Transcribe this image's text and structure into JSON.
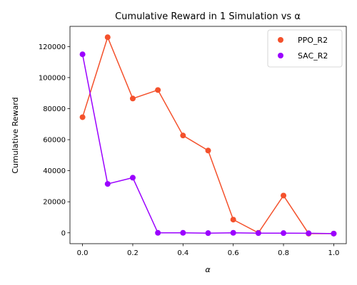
{
  "chart_data": {
    "type": "line",
    "title": "Cumulative Reward in 1 Simulation vs α",
    "xlabel": "α",
    "ylabel": "Cumulative Reward",
    "x": [
      0.0,
      0.1,
      0.2,
      0.3,
      0.4,
      0.5,
      0.6,
      0.7,
      0.8,
      0.9,
      1.0
    ],
    "xlim": [
      -0.05,
      1.05
    ],
    "ylim": [
      -7000,
      133000
    ],
    "x_ticks": [
      "0.0",
      "0.2",
      "0.4",
      "0.6",
      "0.8",
      "1.0"
    ],
    "x_tick_values": [
      0.0,
      0.2,
      0.4,
      0.6,
      0.8,
      1.0
    ],
    "y_ticks": [
      "0",
      "20000",
      "40000",
      "60000",
      "80000",
      "100000",
      "120000"
    ],
    "y_tick_values": [
      0,
      20000,
      40000,
      60000,
      80000,
      100000,
      120000
    ],
    "grid": false,
    "legend_position": "top-right",
    "series": [
      {
        "name": "PPO_R2",
        "color": "#f4512c",
        "values": [
          74500,
          126000,
          86500,
          92000,
          62700,
          53000,
          8500,
          0,
          24000,
          -500,
          -500
        ]
      },
      {
        "name": "SAC_R2",
        "color": "#9b00ff",
        "values": [
          115000,
          31500,
          35500,
          0,
          0,
          -200,
          0,
          -200,
          -200,
          -300,
          -500
        ]
      }
    ]
  }
}
